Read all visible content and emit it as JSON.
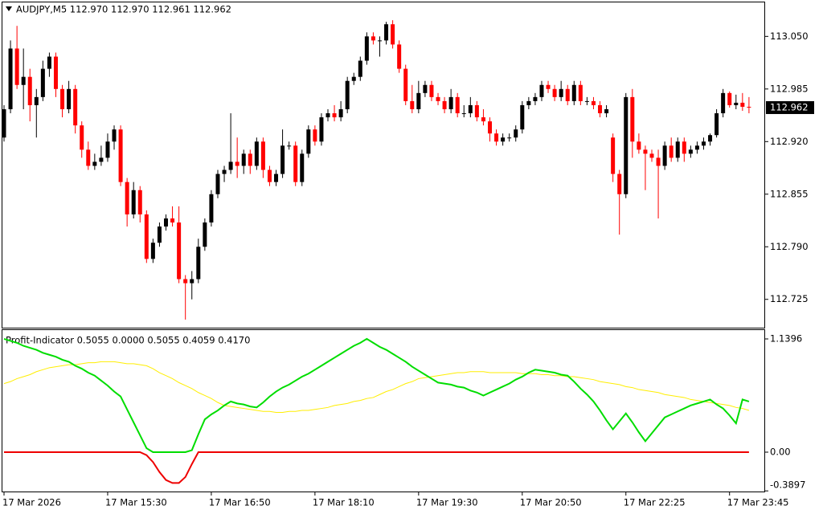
{
  "chart_data": [
    {
      "type": "candlestick",
      "title": "AUDJPY,M5 112.970 112.970 112.961 112.962",
      "categories": [
        "17 Mar 2026",
        null,
        null,
        null,
        null,
        null,
        null,
        null,
        null,
        null,
        null,
        null,
        null,
        null,
        null,
        null,
        "17 Mar 15:30",
        null,
        null,
        null,
        null,
        null,
        null,
        null,
        null,
        null,
        null,
        null,
        null,
        null,
        null,
        null,
        "17 Mar 16:50",
        null,
        null,
        null,
        null,
        null,
        null,
        null,
        null,
        null,
        null,
        null,
        null,
        null,
        null,
        null,
        "17 Mar 18:10",
        null,
        null,
        null,
        null,
        null,
        null,
        null,
        null,
        null,
        null,
        null,
        null,
        null,
        null,
        null,
        "17 Mar 19:30",
        null,
        null,
        null,
        null,
        null,
        null,
        null,
        null,
        null,
        null,
        null,
        null,
        null,
        null,
        null,
        "17 Mar 20:50",
        null,
        null,
        null,
        null,
        null,
        null,
        null,
        null,
        null,
        null,
        null,
        null,
        null,
        null,
        null,
        "17 Mar 22:25",
        null,
        null,
        null,
        null,
        null,
        null,
        null,
        null,
        null,
        null,
        null,
        null,
        null,
        null,
        null,
        "17 Mar 23:45",
        null,
        null,
        null
      ],
      "candles": [
        [
          112.925,
          112.965,
          112.92,
          112.96
        ],
        [
          112.96,
          113.045,
          112.955,
          113.035
        ],
        [
          113.035,
          113.063,
          112.985,
          112.99
        ],
        [
          112.99,
          113.035,
          112.96,
          113.0
        ],
        [
          113.0,
          113.01,
          112.945,
          112.965
        ],
        [
          112.965,
          112.985,
          112.925,
          112.975
        ],
        [
          112.975,
          113.02,
          112.97,
          113.01
        ],
        [
          113.01,
          113.03,
          113.0,
          113.025
        ],
        [
          113.025,
          113.03,
          112.975,
          112.985
        ],
        [
          112.985,
          112.99,
          112.95,
          112.96
        ],
        [
          112.96,
          112.995,
          112.955,
          112.985
        ],
        [
          112.985,
          112.99,
          112.93,
          112.94
        ],
        [
          112.94,
          112.945,
          112.9,
          112.91
        ],
        [
          112.91,
          112.92,
          112.885,
          112.89
        ],
        [
          112.89,
          112.905,
          112.885,
          112.895
        ],
        [
          112.895,
          112.915,
          112.89,
          112.9
        ],
        [
          112.9,
          112.93,
          112.895,
          112.92
        ],
        [
          112.92,
          112.94,
          112.91,
          112.935
        ],
        [
          112.935,
          112.94,
          112.865,
          112.87
        ],
        [
          112.87,
          112.875,
          112.815,
          112.83
        ],
        [
          112.83,
          112.87,
          112.825,
          112.86
        ],
        [
          112.86,
          112.865,
          112.82,
          112.83
        ],
        [
          112.83,
          112.835,
          112.77,
          112.775
        ],
        [
          112.775,
          112.8,
          112.77,
          112.795
        ],
        [
          112.795,
          112.82,
          112.79,
          112.815
        ],
        [
          112.815,
          112.83,
          112.81,
          112.825
        ],
        [
          112.825,
          112.84,
          112.815,
          112.82
        ],
        [
          112.82,
          112.84,
          112.745,
          112.75
        ],
        [
          112.75,
          112.755,
          112.7,
          112.745
        ],
        [
          112.745,
          112.76,
          112.725,
          112.75
        ],
        [
          112.75,
          112.8,
          112.745,
          112.79
        ],
        [
          112.79,
          112.825,
          112.785,
          112.82
        ],
        [
          112.82,
          112.86,
          112.815,
          112.855
        ],
        [
          112.855,
          112.885,
          112.85,
          112.88
        ],
        [
          112.88,
          112.89,
          112.87,
          112.885
        ],
        [
          112.885,
          112.955,
          112.88,
          112.895
        ],
        [
          112.895,
          112.925,
          112.875,
          112.89
        ],
        [
          112.89,
          112.91,
          112.88,
          112.905
        ],
        [
          112.905,
          112.91,
          112.88,
          112.89
        ],
        [
          112.89,
          112.925,
          112.885,
          112.92
        ],
        [
          112.92,
          112.925,
          112.875,
          112.885
        ],
        [
          112.885,
          112.89,
          112.865,
          112.87
        ],
        [
          112.87,
          112.885,
          112.865,
          112.88
        ],
        [
          112.88,
          112.935,
          112.875,
          112.915
        ],
        [
          112.915,
          112.92,
          112.91,
          112.915
        ],
        [
          112.915,
          112.92,
          112.865,
          112.87
        ],
        [
          112.87,
          112.91,
          112.865,
          112.905
        ],
        [
          112.905,
          112.94,
          112.9,
          112.935
        ],
        [
          112.935,
          112.94,
          112.915,
          112.92
        ],
        [
          112.92,
          112.955,
          112.915,
          112.95
        ],
        [
          112.95,
          112.96,
          112.945,
          112.955
        ],
        [
          112.955,
          112.965,
          112.945,
          112.95
        ],
        [
          112.95,
          112.97,
          112.945,
          112.96
        ],
        [
          112.96,
          113.0,
          112.955,
          112.995
        ],
        [
          112.995,
          113.005,
          112.99,
          113.0
        ],
        [
          113.0,
          113.025,
          112.995,
          113.02
        ],
        [
          113.02,
          113.055,
          113.015,
          113.05
        ],
        [
          113.05,
          113.055,
          113.04,
          113.045
        ],
        [
          113.045,
          113.05,
          113.025,
          113.045
        ],
        [
          113.045,
          113.068,
          113.04,
          113.065
        ],
        [
          113.065,
          113.07,
          113.035,
          113.04
        ],
        [
          113.04,
          113.045,
          113.005,
          113.01
        ],
        [
          113.01,
          113.015,
          112.965,
          112.97
        ],
        [
          112.97,
          112.99,
          112.955,
          112.96
        ],
        [
          112.96,
          112.995,
          112.955,
          112.98
        ],
        [
          112.98,
          112.995,
          112.975,
          112.99
        ],
        [
          112.99,
          112.995,
          112.97,
          112.975
        ],
        [
          112.975,
          112.98,
          112.965,
          112.97
        ],
        [
          112.97,
          112.975,
          112.955,
          112.96
        ],
        [
          112.96,
          112.985,
          112.955,
          112.975
        ],
        [
          112.975,
          112.98,
          112.95,
          112.955
        ],
        [
          112.955,
          112.965,
          112.95,
          112.955
        ],
        [
          112.955,
          112.975,
          112.95,
          112.965
        ],
        [
          112.965,
          112.97,
          112.945,
          112.95
        ],
        [
          112.95,
          112.96,
          112.94,
          112.945
        ],
        [
          112.945,
          112.95,
          112.92,
          112.93
        ],
        [
          112.93,
          112.935,
          112.915,
          112.92
        ],
        [
          112.92,
          112.93,
          112.915,
          112.925
        ],
        [
          112.925,
          112.93,
          112.92,
          112.925
        ],
        [
          112.925,
          112.94,
          112.92,
          112.935
        ],
        [
          112.935,
          112.97,
          112.93,
          112.965
        ],
        [
          112.965,
          112.975,
          112.96,
          112.97
        ],
        [
          112.97,
          112.98,
          112.965,
          112.975
        ],
        [
          112.975,
          112.995,
          112.97,
          112.99
        ],
        [
          112.99,
          112.995,
          112.98,
          112.985
        ],
        [
          112.985,
          112.99,
          112.97,
          112.975
        ],
        [
          112.975,
          112.995,
          112.97,
          112.985
        ],
        [
          112.985,
          112.99,
          112.965,
          112.97
        ],
        [
          112.97,
          112.995,
          112.965,
          112.99
        ],
        [
          112.99,
          112.995,
          112.965,
          112.97
        ],
        [
          112.97,
          112.975,
          112.965,
          112.97
        ],
        [
          112.97,
          112.975,
          112.96,
          112.965
        ],
        [
          112.965,
          112.97,
          112.95,
          112.955
        ],
        [
          112.955,
          112.965,
          112.95,
          112.96
        ],
        [
          112.925,
          112.93,
          112.87,
          112.88
        ],
        [
          112.88,
          112.885,
          112.805,
          112.855
        ],
        [
          112.855,
          112.98,
          112.85,
          112.975
        ],
        [
          112.975,
          112.985,
          112.9,
          112.92
        ],
        [
          112.92,
          112.93,
          112.905,
          112.91
        ],
        [
          112.91,
          112.915,
          112.86,
          112.905
        ],
        [
          112.905,
          112.91,
          112.895,
          112.9
        ],
        [
          112.9,
          112.91,
          112.825,
          112.89
        ],
        [
          112.89,
          112.92,
          112.885,
          112.915
        ],
        [
          112.915,
          112.925,
          112.895,
          112.9
        ],
        [
          112.9,
          112.925,
          112.895,
          112.92
        ],
        [
          112.92,
          112.925,
          112.895,
          112.905
        ],
        [
          112.905,
          112.915,
          112.9,
          112.91
        ],
        [
          112.91,
          112.92,
          112.905,
          112.915
        ],
        [
          112.915,
          112.925,
          112.91,
          112.92
        ],
        [
          112.92,
          112.93,
          112.915,
          112.928
        ],
        [
          112.928,
          112.96,
          112.925,
          112.955
        ],
        [
          112.955,
          112.985,
          112.95,
          112.98
        ],
        [
          112.98,
          112.982,
          112.962,
          112.965
        ],
        [
          112.965,
          112.978,
          112.96,
          112.968
        ],
        [
          112.968,
          112.98,
          112.958,
          112.963
        ],
        [
          112.963,
          112.975,
          112.955,
          112.962
        ]
      ],
      "up_color": "#000000",
      "down_color": "#ff0000",
      "ylim": [
        112.69,
        113.093
      ],
      "yticks": [
        {
          "value": 113.05,
          "label": "113.050"
        },
        112.985,
        {
          "value": 112.92,
          "label": "112.920"
        },
        112.855,
        {
          "value": 112.79,
          "label": "112.790"
        },
        112.725
      ],
      "price_tag": {
        "value": 112.962,
        "label": "112.962"
      }
    },
    {
      "type": "line",
      "title": "Profit-Indicator 0.5055 0.0000 0.5055 0.4059 0.4170",
      "ylim": [
        -0.396,
        1.2285
      ],
      "yticks": [
        1.1396,
        {
          "value": 0,
          "label": "0.00"
        },
        -0.3897
      ],
      "series": [
        {
          "color": "#ffee00",
          "values": [
            0.69,
            0.71,
            0.74,
            0.76,
            0.78,
            0.81,
            0.83,
            0.85,
            0.86,
            0.87,
            0.88,
            0.88,
            0.89,
            0.9,
            0.9,
            0.91,
            0.91,
            0.91,
            0.9,
            0.89,
            0.89,
            0.88,
            0.87,
            0.84,
            0.8,
            0.77,
            0.74,
            0.7,
            0.67,
            0.64,
            0.6,
            0.57,
            0.54,
            0.5,
            0.47,
            0.46,
            0.45,
            0.44,
            0.43,
            0.42,
            0.41,
            0.41,
            0.4,
            0.4,
            0.41,
            0.41,
            0.42,
            0.42,
            0.43,
            0.44,
            0.45,
            0.47,
            0.48,
            0.49,
            0.51,
            0.52,
            0.54,
            0.55,
            0.58,
            0.61,
            0.63,
            0.66,
            0.69,
            0.71,
            0.74,
            0.75,
            0.76,
            0.77,
            0.78,
            0.79,
            0.8,
            0.8,
            0.81,
            0.81,
            0.81,
            0.8,
            0.8,
            0.8,
            0.8,
            0.8,
            0.79,
            0.79,
            0.79,
            0.78,
            0.78,
            0.77,
            0.77,
            0.76,
            0.76,
            0.75,
            0.74,
            0.73,
            0.71,
            0.7,
            0.69,
            0.68,
            0.66,
            0.65,
            0.63,
            0.62,
            0.61,
            0.6,
            0.58,
            0.57,
            0.56,
            0.55,
            0.53,
            0.52,
            0.51,
            0.5,
            0.49,
            0.48,
            0.47,
            0.45,
            0.44,
            0.42
          ]
        },
        {
          "color": "#00dd00",
          "values": [
            1.14,
            1.12,
            1.1,
            1.07,
            1.05,
            1.03,
            1.0,
            0.98,
            0.96,
            0.93,
            0.91,
            0.87,
            0.84,
            0.8,
            0.77,
            0.72,
            0.67,
            0.61,
            0.56,
            0.43,
            0.3,
            0.17,
            0.04,
            0,
            0,
            0,
            0,
            0,
            0,
            0.02,
            0.18,
            0.33,
            0.38,
            0.42,
            0.47,
            0.51,
            0.49,
            0.48,
            0.46,
            0.45,
            0.5,
            0.56,
            0.61,
            0.65,
            0.68,
            0.72,
            0.76,
            0.79,
            0.83,
            0.87,
            0.91,
            0.95,
            0.99,
            1.03,
            1.07,
            1.1,
            1.14,
            1.1,
            1.06,
            1.03,
            0.99,
            0.95,
            0.91,
            0.86,
            0.82,
            0.78,
            0.74,
            0.7,
            0.69,
            0.68,
            0.66,
            0.65,
            0.62,
            0.6,
            0.57,
            0.6,
            0.63,
            0.66,
            0.69,
            0.73,
            0.76,
            0.8,
            0.83,
            0.82,
            0.81,
            0.8,
            0.78,
            0.77,
            0.71,
            0.64,
            0.58,
            0.51,
            0.42,
            0.32,
            0.23,
            0.31,
            0.39,
            0.3,
            0.2,
            0.11,
            0.19,
            0.27,
            0.35,
            0.38,
            0.41,
            0.44,
            0.47,
            0.49,
            0.51,
            0.53,
            0.48,
            0.44,
            0.37,
            0.29,
            0.53,
            0.51
          ]
        },
        {
          "color": "#ee0000",
          "values": [
            0,
            0,
            0,
            0,
            0,
            0,
            0,
            0,
            0,
            0,
            0,
            0,
            0,
            0,
            0,
            0,
            0,
            0,
            0,
            0,
            0,
            0,
            -0.03,
            -0.1,
            -0.2,
            -0.28,
            -0.31,
            -0.31,
            -0.25,
            -0.12,
            0,
            0,
            0,
            0,
            0,
            0,
            0,
            0,
            0,
            0,
            0,
            0,
            0,
            0,
            0,
            0,
            0,
            0,
            0,
            0,
            0,
            0,
            0,
            0,
            0,
            0,
            0,
            0,
            0,
            0,
            0,
            0,
            0,
            0,
            0,
            0,
            0,
            0,
            0,
            0,
            0,
            0,
            0,
            0,
            0,
            0,
            0,
            0,
            0,
            0,
            0,
            0,
            0,
            0,
            0,
            0,
            0,
            0,
            0,
            0,
            0,
            0,
            0,
            0,
            0,
            0,
            0,
            0,
            0,
            0,
            0,
            0,
            0,
            0,
            0,
            0,
            0,
            0,
            0,
            0,
            0,
            0,
            0,
            0,
            0,
            0
          ]
        }
      ]
    }
  ]
}
